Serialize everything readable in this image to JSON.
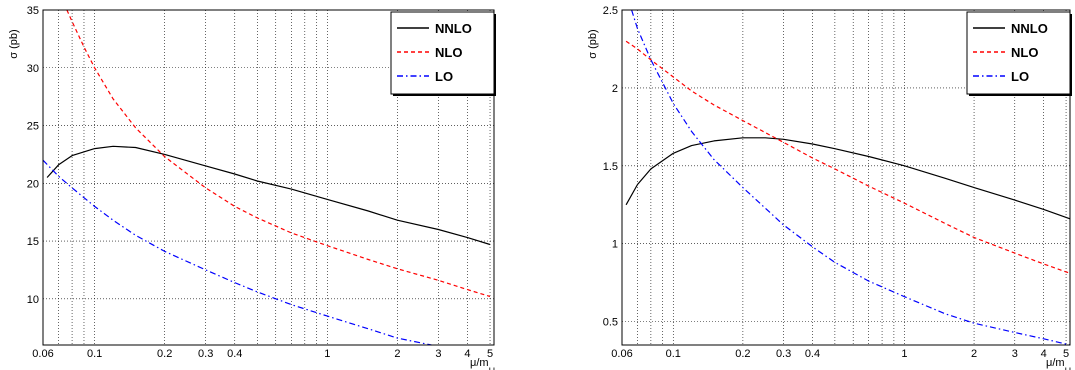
{
  "chart_data": [
    {
      "type": "line",
      "xscale": "log",
      "xlim": [
        0.06,
        5.2
      ],
      "ylim": [
        6,
        35
      ],
      "grid": true,
      "legend_position": "top-right",
      "ylabel": "σ (pb)",
      "xlabel": "μ/m_H",
      "xticks": [
        0.06,
        0.1,
        0.2,
        0.3,
        0.4,
        1,
        2,
        3,
        4,
        5
      ],
      "xtick_labels": [
        "0.06",
        "0.1",
        "0.2",
        "0.3",
        "0.4",
        "1",
        "2",
        "3",
        "4",
        "5"
      ],
      "yticks": [
        10,
        15,
        20,
        25,
        30,
        35
      ],
      "ytick_labels": [
        "10",
        "15",
        "20",
        "25",
        "30",
        "35"
      ],
      "series": [
        {
          "name": "NNLO",
          "color": "#000000",
          "dash": "solid",
          "x": [
            0.0625,
            0.07,
            0.08,
            0.1,
            0.12,
            0.15,
            0.2,
            0.3,
            0.4,
            0.5,
            0.7,
            1,
            1.5,
            2,
            3,
            4,
            5
          ],
          "y": [
            20.5,
            21.6,
            22.4,
            23.0,
            23.2,
            23.1,
            22.5,
            21.5,
            20.8,
            20.2,
            19.5,
            18.6,
            17.6,
            16.8,
            16.0,
            15.3,
            14.7
          ]
        },
        {
          "name": "NLO",
          "color": "#ff0000",
          "dash": "dashed",
          "x": [
            0.076,
            0.08,
            0.09,
            0.1,
            0.12,
            0.15,
            0.2,
            0.3,
            0.4,
            0.5,
            0.7,
            1,
            1.5,
            2,
            3,
            4,
            5
          ],
          "y": [
            35,
            34.0,
            31.8,
            30.0,
            27.3,
            24.8,
            22.3,
            19.6,
            18.0,
            17.0,
            15.7,
            14.6,
            13.4,
            12.6,
            11.6,
            10.8,
            10.2
          ]
        },
        {
          "name": "LO",
          "color": "#0000ff",
          "dash": "dashdot",
          "x": [
            0.06,
            0.07,
            0.08,
            0.1,
            0.12,
            0.15,
            0.2,
            0.3,
            0.4,
            0.5,
            0.7,
            1,
            1.5,
            2,
            2.8
          ],
          "y": [
            22.0,
            20.6,
            19.6,
            18.0,
            16.8,
            15.5,
            14.1,
            12.5,
            11.4,
            10.6,
            9.5,
            8.5,
            7.4,
            6.6,
            6.0
          ]
        }
      ]
    },
    {
      "type": "line",
      "xscale": "log",
      "xlim": [
        0.06,
        5.2
      ],
      "ylim": [
        0.35,
        2.5
      ],
      "grid": true,
      "legend_position": "top-right",
      "ylabel": "σ (pb)",
      "xlabel": "μ/m_H",
      "xticks": [
        0.06,
        0.1,
        0.2,
        0.3,
        0.4,
        1,
        2,
        3,
        4,
        5
      ],
      "xtick_labels": [
        "0.06",
        "0.1",
        "0.2",
        "0.3",
        "0.4",
        "1",
        "2",
        "3",
        "4",
        "5"
      ],
      "yticks": [
        0.5,
        1,
        1.5,
        2,
        2.5
      ],
      "ytick_labels": [
        "0.5",
        "1",
        "1.5",
        "2",
        "2.5"
      ],
      "series": [
        {
          "name": "NNLO",
          "color": "#000000",
          "dash": "solid",
          "x": [
            0.0625,
            0.07,
            0.08,
            0.1,
            0.12,
            0.15,
            0.2,
            0.25,
            0.3,
            0.4,
            0.5,
            0.7,
            1,
            1.5,
            2,
            3,
            4,
            5.2
          ],
          "y": [
            1.25,
            1.38,
            1.48,
            1.58,
            1.63,
            1.66,
            1.68,
            1.68,
            1.67,
            1.64,
            1.61,
            1.56,
            1.5,
            1.42,
            1.36,
            1.28,
            1.22,
            1.16
          ]
        },
        {
          "name": "NLO",
          "color": "#ff0000",
          "dash": "dashed",
          "x": [
            0.0625,
            0.07,
            0.08,
            0.1,
            0.12,
            0.15,
            0.2,
            0.3,
            0.4,
            0.5,
            0.7,
            1,
            1.5,
            2,
            3,
            4,
            5.2
          ],
          "y": [
            2.3,
            2.25,
            2.18,
            2.07,
            1.98,
            1.89,
            1.79,
            1.65,
            1.55,
            1.48,
            1.37,
            1.26,
            1.13,
            1.04,
            0.94,
            0.87,
            0.81
          ]
        },
        {
          "name": "LO",
          "color": "#0000ff",
          "dash": "dashdot",
          "x": [
            0.066,
            0.07,
            0.08,
            0.1,
            0.12,
            0.15,
            0.2,
            0.3,
            0.4,
            0.5,
            0.7,
            1,
            1.5,
            2,
            3,
            4,
            5.2
          ],
          "y": [
            2.5,
            2.38,
            2.18,
            1.9,
            1.72,
            1.54,
            1.36,
            1.12,
            0.98,
            0.88,
            0.76,
            0.66,
            0.55,
            0.49,
            0.43,
            0.39,
            0.35
          ]
        }
      ]
    }
  ]
}
